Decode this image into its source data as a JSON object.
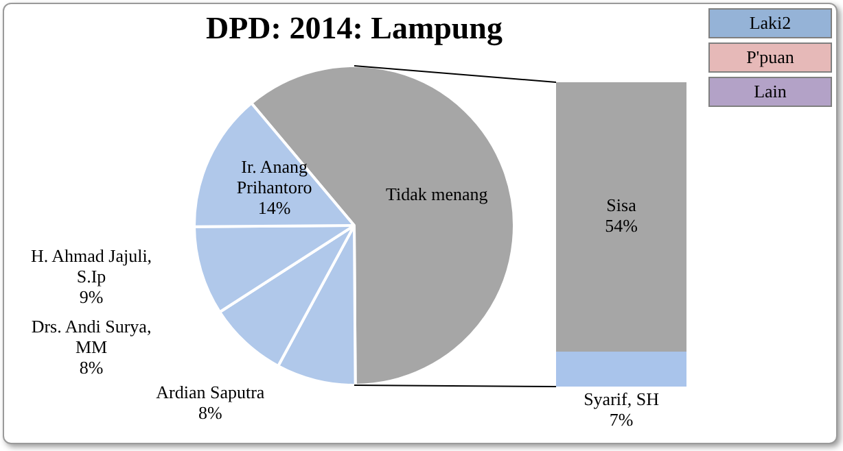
{
  "chart_data": [
    {
      "type": "pie",
      "title": "DPD: 2014: Lampung",
      "categories": [
        "Tidak menang",
        "Ardian Saputra",
        "Drs. Andi Surya, MM",
        "H. Ahmad Jajuli, S.Ip",
        "Ir. Anang Prihantoro"
      ],
      "values": [
        61,
        8,
        8,
        9,
        14
      ],
      "colors": [
        "#a6a6a6",
        "#b0c8ea",
        "#b0c8ea",
        "#b0c8ea",
        "#b0c8ea"
      ],
      "value_labels": [
        null,
        "8%",
        "8%",
        "9%",
        "14%"
      ],
      "annotations": [
        "Laki2",
        "P'puan",
        "Lain"
      ]
    },
    {
      "type": "bar",
      "stacked": true,
      "categories": [
        null
      ],
      "series": [
        {
          "name": "Syarif, SH",
          "color": "#a9c4eb",
          "values": [
            7
          ],
          "value_labels": [
            "7%"
          ]
        },
        {
          "name": "Sisa",
          "color": "#a6a6a6",
          "values": [
            54
          ],
          "value_labels": [
            "54%"
          ]
        }
      ]
    }
  ]
}
